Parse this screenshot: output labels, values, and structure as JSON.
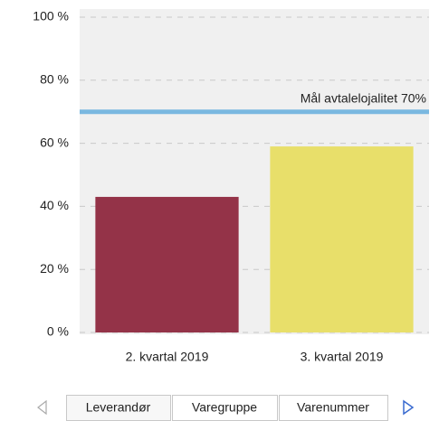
{
  "chart_data": {
    "type": "bar",
    "categories": [
      "2. kvartal 2019",
      "3. kvartal 2019"
    ],
    "values": [
      43,
      59
    ],
    "colors": [
      "#943348",
      "#e8df6a"
    ],
    "ylim": [
      0,
      100
    ],
    "yticks": [
      {
        "value": 0,
        "label": "0 %"
      },
      {
        "value": 20,
        "label": "20 %"
      },
      {
        "value": 40,
        "label": "40 %"
      },
      {
        "value": 60,
        "label": "60 %"
      },
      {
        "value": 80,
        "label": "80 %"
      },
      {
        "value": 100,
        "label": "100 %"
      }
    ],
    "grid": true,
    "target": {
      "value": 70,
      "label": "Mål avtalelojalitet 70%",
      "color": "#7ab8e0"
    }
  },
  "tabs": [
    "Leverandør",
    "Varegruppe",
    "Varenummer"
  ]
}
